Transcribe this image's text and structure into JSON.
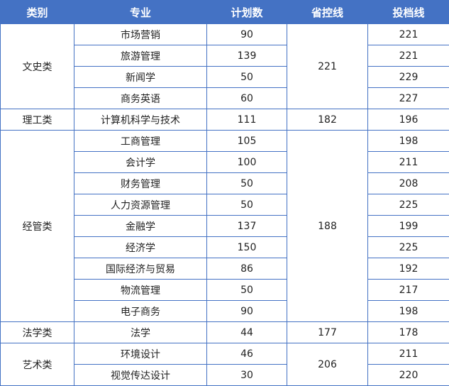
{
  "headers": [
    "类别",
    "专业",
    "计划数",
    "省控线",
    "投档线"
  ],
  "groups": [
    {
      "category": "文史类",
      "control_line": "221",
      "rows": [
        [
          "市场营销",
          "90",
          "221"
        ],
        [
          "旅游管理",
          "139",
          "221"
        ],
        [
          "新闻学",
          "50",
          "229"
        ],
        [
          "商务英语",
          "60",
          "227"
        ]
      ]
    },
    {
      "category": "理工类",
      "control_line": "182",
      "rows": [
        [
          "计算机科学与技术",
          "111",
          "196"
        ]
      ]
    },
    {
      "category": "经管类",
      "control_line": "188",
      "rows": [
        [
          "工商管理",
          "105",
          "198"
        ],
        [
          "会计学",
          "100",
          "211"
        ],
        [
          "财务管理",
          "50",
          "208"
        ],
        [
          "人力资源管理",
          "50",
          "225"
        ],
        [
          "金融学",
          "137",
          "199"
        ],
        [
          "经济学",
          "150",
          "225"
        ],
        [
          "国际经济与贸易",
          "86",
          "192"
        ],
        [
          "物流管理",
          "50",
          "217"
        ],
        [
          "电子商务",
          "90",
          "198"
        ]
      ]
    },
    {
      "category": "法学类",
      "control_line": "177",
      "rows": [
        [
          "法学",
          "44",
          "178"
        ]
      ]
    },
    {
      "category": "艺术类",
      "control_line": "206",
      "rows": [
        [
          "环境设计",
          "46",
          "211"
        ],
        [
          "视觉传达设计",
          "30",
          "220"
        ]
      ]
    }
  ],
  "colors": {
    "header": "#4472C4",
    "border": "#4472C4"
  }
}
